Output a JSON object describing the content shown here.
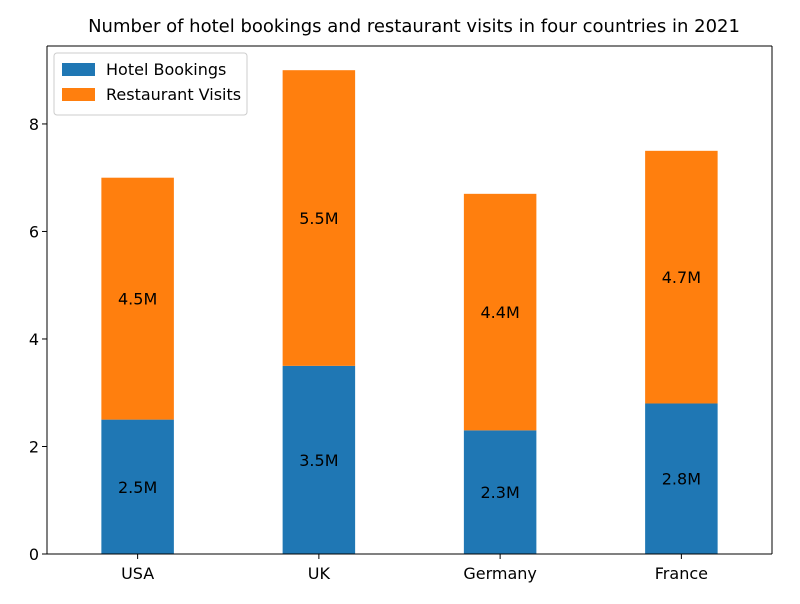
{
  "chart_data": {
    "type": "bar",
    "stacked": true,
    "title": "Number of hotel bookings and restaurant visits in four countries in 2021",
    "xlabel": "",
    "ylabel": "",
    "categories": [
      "USA",
      "UK",
      "Germany",
      "France"
    ],
    "series": [
      {
        "name": "Hotel Bookings",
        "values": [
          2.5,
          3.5,
          2.3,
          2.8
        ],
        "labels": [
          "2.5M",
          "3.5M",
          "2.3M",
          "2.8M"
        ],
        "color": "#1f77b4"
      },
      {
        "name": "Restaurant Visits",
        "values": [
          4.5,
          5.5,
          4.4,
          4.7
        ],
        "labels": [
          "4.5M",
          "5.5M",
          "4.4M",
          "4.7M"
        ],
        "color": "#ff7f0e"
      }
    ],
    "ylim": [
      0,
      9.45
    ],
    "yticks": [
      "0",
      "2",
      "4",
      "6",
      "8"
    ],
    "grid": false,
    "legend": "top-left"
  }
}
